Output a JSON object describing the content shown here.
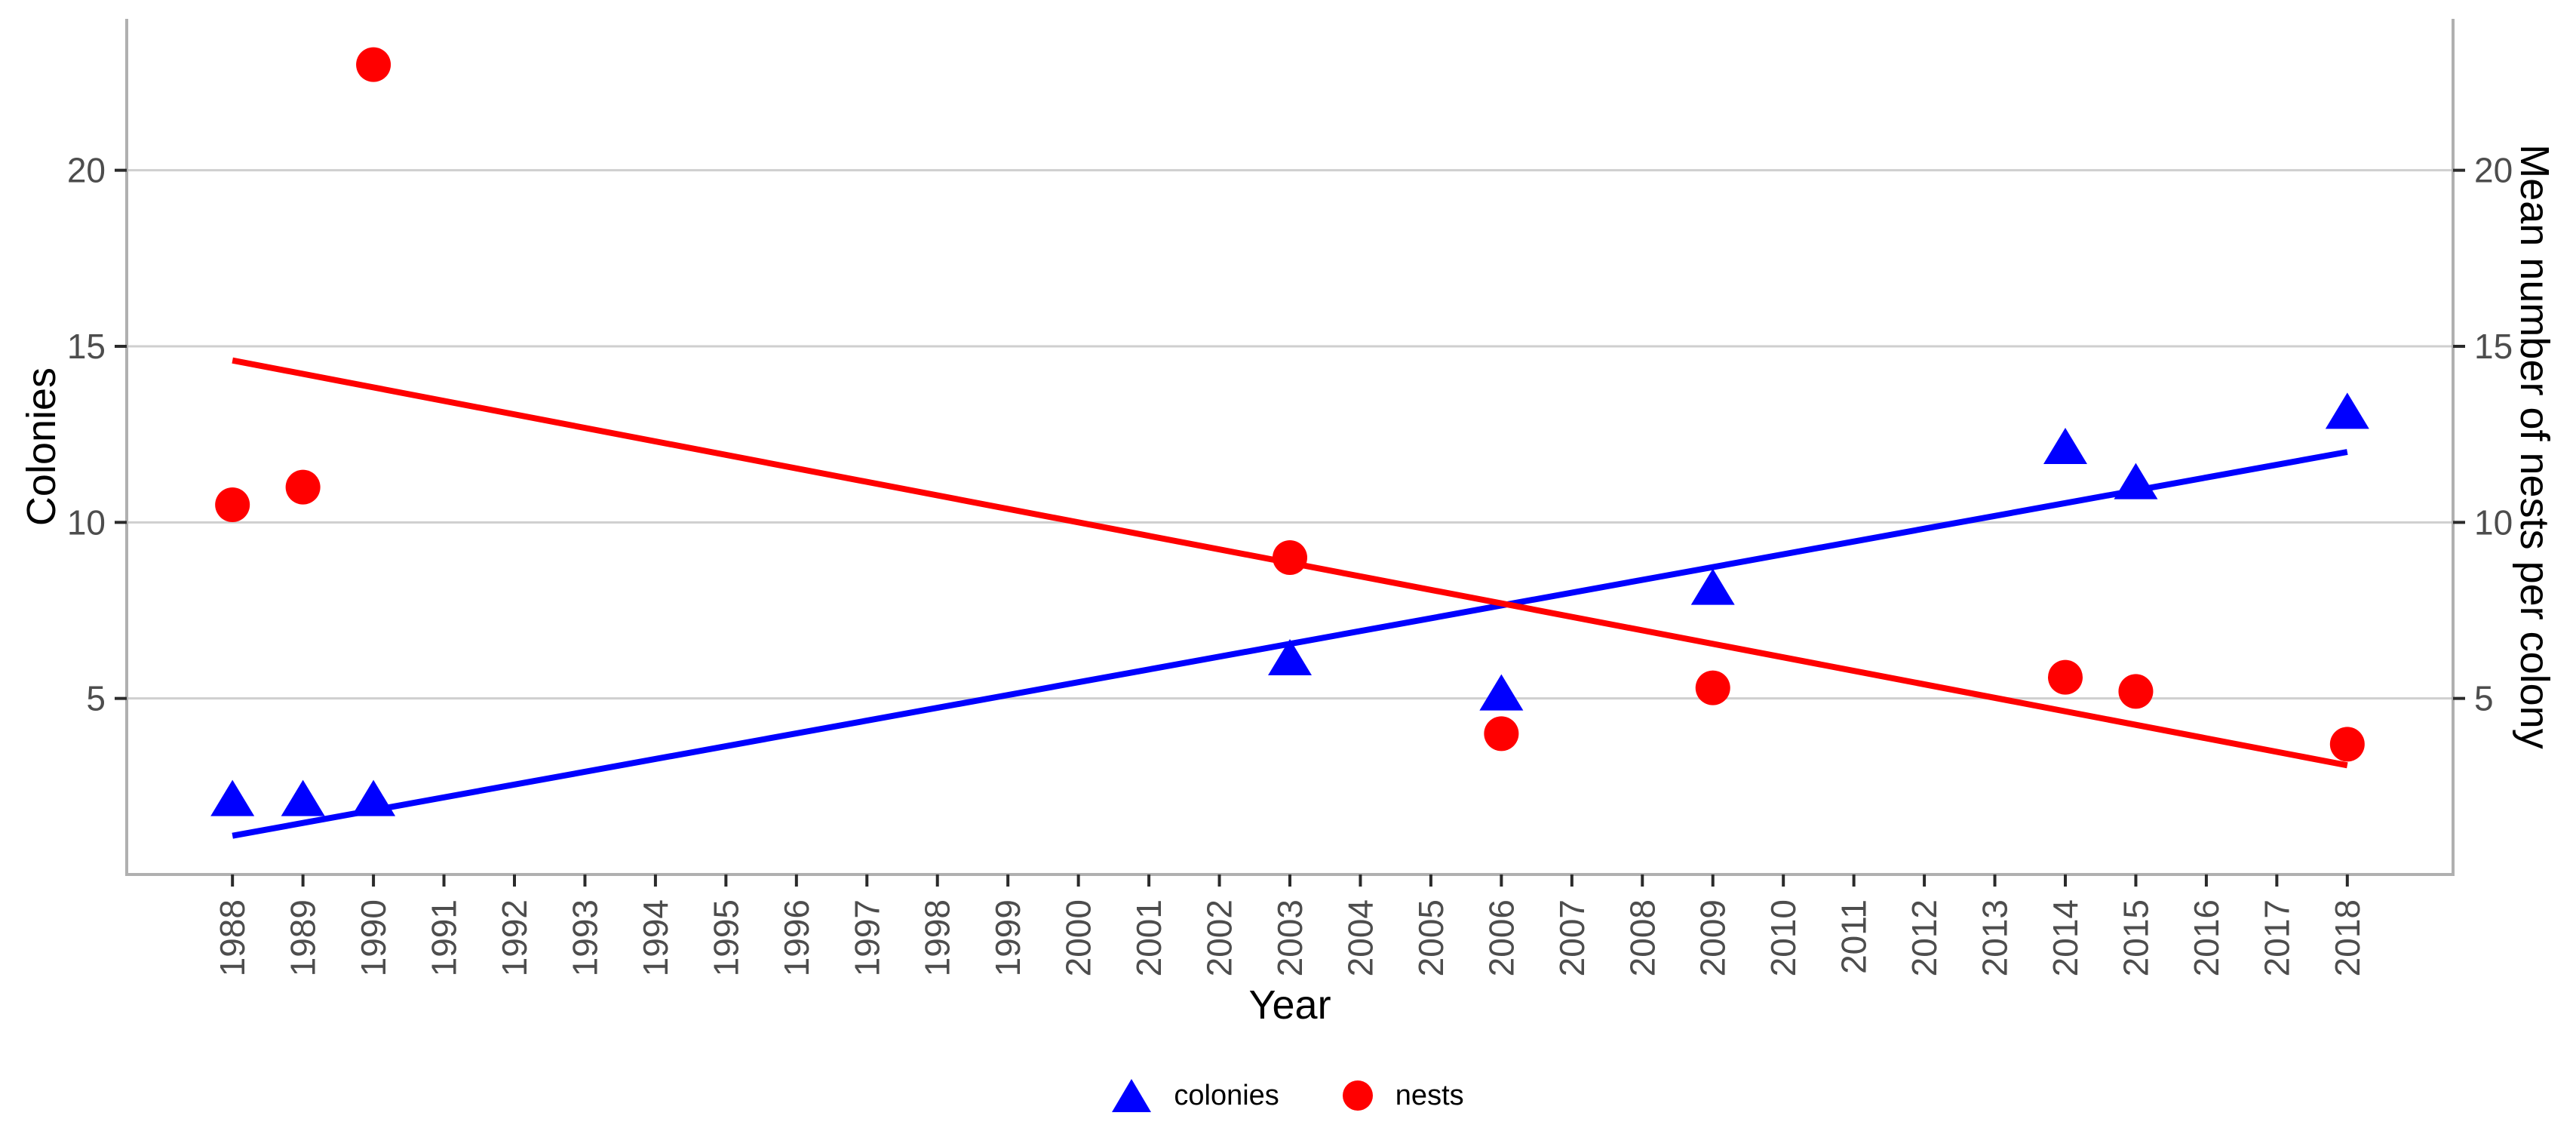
{
  "chart_data": {
    "type": "scatter",
    "title": "",
    "xlabel": "Year",
    "ylabel_left": "Colonies",
    "ylabel_right": "Mean number of nests per colony",
    "x_ticks": [
      1988,
      1989,
      1990,
      1991,
      1992,
      1993,
      1994,
      1995,
      1996,
      1997,
      1998,
      1999,
      2000,
      2001,
      2002,
      2003,
      2004,
      2005,
      2006,
      2007,
      2008,
      2009,
      2010,
      2011,
      2012,
      2013,
      2014,
      2015,
      2016,
      2017,
      2018
    ],
    "y_ticks_left": [
      5,
      10,
      15,
      20
    ],
    "y_ticks_right": [
      5,
      10,
      15,
      20
    ],
    "xlim": [
      1986.5,
      2019.5
    ],
    "ylim": [
      0,
      24.3
    ],
    "grid": "horizontal-major-only",
    "legend_position": "bottom-center",
    "colors": {
      "colonies": "#0000ff",
      "nests": "#ff0000",
      "gridline": "#cfcfcf",
      "axis_line": "#b0b0b0",
      "tick_mark": "#2b2b2b",
      "tick_label": "#4d4d4d",
      "axis_title": "#000000"
    },
    "series": [
      {
        "name": "colonies",
        "marker": "triangle",
        "color": "#0000ff",
        "points": {
          "x": [
            1988,
            1989,
            1990,
            2003,
            2006,
            2009,
            2014,
            2015,
            2018
          ],
          "y": [
            2,
            2,
            2,
            6,
            5,
            8,
            12,
            11,
            13
          ]
        },
        "trend_line": {
          "x": [
            1988,
            2018
          ],
          "y": [
            1.1,
            12.0
          ]
        }
      },
      {
        "name": "nests",
        "marker": "circle",
        "color": "#ff0000",
        "points": {
          "x": [
            1988,
            1989,
            1990,
            2003,
            2006,
            2009,
            2014,
            2015,
            2018
          ],
          "y": [
            10.5,
            11,
            23,
            9,
            4,
            5.3,
            5.6,
            5.2,
            3.7
          ]
        },
        "trend_line": {
          "x": [
            1988,
            2018
          ],
          "y": [
            14.6,
            3.1
          ]
        }
      }
    ],
    "legend": {
      "items": [
        "colonies",
        "nests"
      ]
    }
  }
}
